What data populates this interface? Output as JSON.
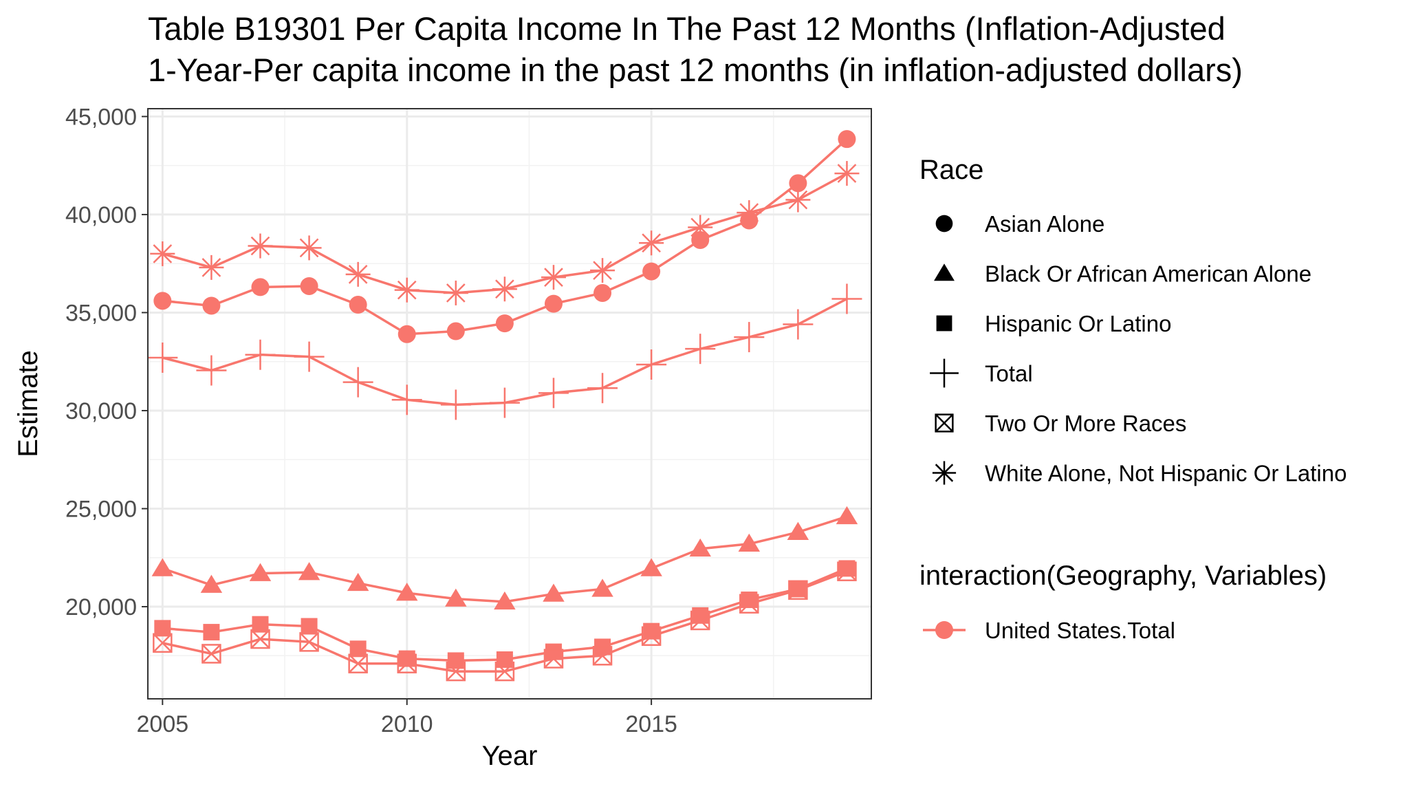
{
  "chart_data": {
    "type": "line",
    "title_lines": [
      "Table B19301 Per Capita Income In The Past 12 Months (Inflation-Adjusted",
      "1-Year-Per capita income in the past 12 months (in inflation-adjusted dollars)"
    ],
    "xlabel": "Year",
    "ylabel": "Estimate",
    "xlim": [
      2004.7,
      2019.5
    ],
    "ylim": [
      15300,
      45400
    ],
    "x_ticks": [
      2005,
      2010,
      2015
    ],
    "x_tick_labels": [
      "2005",
      "2010",
      "2015"
    ],
    "y_ticks": [
      20000,
      25000,
      30000,
      35000,
      40000,
      45000
    ],
    "y_tick_labels": [
      "20,000",
      "25,000",
      "30,000",
      "35,000",
      "40,000",
      "45,000"
    ],
    "grid": true,
    "color": "#F8766D",
    "x": [
      2005,
      2006,
      2007,
      2008,
      2009,
      2010,
      2011,
      2012,
      2013,
      2014,
      2015,
      2016,
      2017,
      2018,
      2019
    ],
    "series": [
      {
        "name": "Asian Alone",
        "shape": "circle",
        "values": [
          35600,
          35350,
          36300,
          36350,
          35400,
          33900,
          34050,
          34450,
          35450,
          36000,
          37100,
          38700,
          39700,
          41600,
          43850
        ]
      },
      {
        "name": "Black Or African American Alone",
        "shape": "triangle",
        "values": [
          21950,
          21100,
          21700,
          21750,
          21200,
          20700,
          20400,
          20250,
          20650,
          20900,
          21950,
          22950,
          23200,
          23800,
          24600
        ]
      },
      {
        "name": "Hispanic Or Latino",
        "shape": "square",
        "values": [
          18900,
          18700,
          19100,
          19000,
          17850,
          17350,
          17250,
          17300,
          17700,
          17950,
          18750,
          19550,
          20350,
          20900,
          21950
        ]
      },
      {
        "name": "Total",
        "shape": "plus",
        "values": [
          32700,
          32050,
          32850,
          32750,
          31450,
          30550,
          30300,
          30400,
          30900,
          31150,
          32350,
          33150,
          33750,
          34400,
          35700
        ]
      },
      {
        "name": "Two Or More Races",
        "shape": "square-x",
        "values": [
          18150,
          17600,
          18350,
          18200,
          17100,
          17100,
          16700,
          16700,
          17350,
          17500,
          18500,
          19300,
          20150,
          20850,
          21800
        ]
      },
      {
        "name": "White Alone, Not Hispanic Or Latino",
        "shape": "asterisk",
        "values": [
          38000,
          37300,
          38400,
          38300,
          36950,
          36150,
          36000,
          36200,
          36800,
          37150,
          38550,
          39350,
          40100,
          40750,
          42100
        ]
      }
    ],
    "legend": {
      "position": "right",
      "race_title": "Race",
      "race_items": [
        {
          "label": "Asian Alone",
          "shape": "circle"
        },
        {
          "label": "Black Or African American Alone",
          "shape": "triangle"
        },
        {
          "label": "Hispanic Or Latino",
          "shape": "square"
        },
        {
          "label": "Total",
          "shape": "plus"
        },
        {
          "label": "Two Or More Races",
          "shape": "square-x"
        },
        {
          "label": "White Alone, Not Hispanic Or Latino",
          "shape": "asterisk"
        }
      ],
      "group_title": "interaction(Geography, Variables)",
      "group_items": [
        {
          "label": "United States.Total",
          "color": "#F8766D"
        }
      ]
    }
  }
}
